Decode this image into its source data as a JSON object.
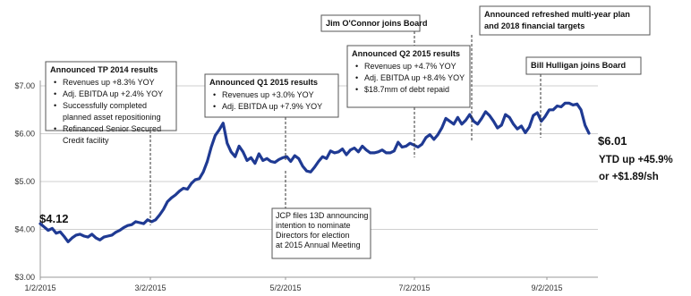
{
  "chart_data": {
    "type": "line",
    "title": "",
    "xlabel": "",
    "ylabel": "",
    "ylim": [
      3.0,
      7.0
    ],
    "yticks": [
      "$3.00",
      "$4.00",
      "$5.00",
      "$6.00",
      "$7.00"
    ],
    "xticks": [
      "1/2/2015",
      "3/2/2015",
      "5/2/2015",
      "7/2/2015",
      "9/2/2015"
    ],
    "grid": true,
    "series": [
      {
        "values": [
          4.12,
          4.05,
          3.98,
          4.02,
          3.92,
          3.95,
          3.85,
          3.74,
          3.82,
          3.88,
          3.9,
          3.86,
          3.84,
          3.9,
          3.82,
          3.78,
          3.84,
          3.86,
          3.88,
          3.94,
          3.98,
          4.04,
          4.08,
          4.1,
          4.16,
          4.14,
          4.12,
          4.2,
          4.16,
          4.2,
          4.3,
          4.42,
          4.58,
          4.66,
          4.72,
          4.8,
          4.86,
          4.84,
          4.96,
          5.04,
          5.06,
          5.2,
          5.42,
          5.72,
          5.96,
          6.08,
          6.22,
          5.8,
          5.62,
          5.52,
          5.74,
          5.62,
          5.44,
          5.5,
          5.38,
          5.58,
          5.44,
          5.48,
          5.42,
          5.4,
          5.46,
          5.5,
          5.52,
          5.42,
          5.54,
          5.48,
          5.32,
          5.22,
          5.2,
          5.3,
          5.42,
          5.52,
          5.48,
          5.64,
          5.6,
          5.62,
          5.68,
          5.56,
          5.66,
          5.7,
          5.62,
          5.74,
          5.66,
          5.6,
          5.6,
          5.62,
          5.66,
          5.6,
          5.6,
          5.64,
          5.82,
          5.72,
          5.74,
          5.8,
          5.76,
          5.72,
          5.78,
          5.92,
          5.98,
          5.88,
          5.98,
          6.12,
          6.32,
          6.26,
          6.2,
          6.34,
          6.2,
          6.28,
          6.4,
          6.26,
          6.2,
          6.32,
          6.46,
          6.38,
          6.26,
          6.12,
          6.18,
          6.4,
          6.34,
          6.2,
          6.1,
          6.16,
          6.02,
          6.14,
          6.38,
          6.44,
          6.26,
          6.36,
          6.5,
          6.5,
          6.58,
          6.56,
          6.64,
          6.64,
          6.6,
          6.62,
          6.5,
          6.18,
          6.01
        ]
      }
    ],
    "start_label": "$4.12",
    "end_label": "$6.01",
    "end_note_1": "YTD up +45.9%",
    "end_note_2": "or +$1.89/sh",
    "annotations": [
      {
        "title": "Announced TP 2014 results",
        "items": [
          "Revenues up +8.3% YOY",
          "Adj. EBITDA up +2.4% YOY",
          "Successfully completed planned asset repositioning",
          "Refinanced Senior Secured Credit facility"
        ],
        "date": "3/2/2015"
      },
      {
        "title": "Announced Q1 2015 results",
        "items": [
          "Revenues up +3.0% YOY",
          "Adj. EBITDA up +7.9% YOY"
        ],
        "date": "5/2/2015"
      },
      {
        "title": "",
        "items": [
          "JCP files 13D announcing intention to nominate Directors for election at 2015 Annual Meeting"
        ],
        "date": "5/2/2015"
      },
      {
        "title": "Jim O'Connor joins Board",
        "items": [],
        "date": "7/2/2015"
      },
      {
        "title": "Announced Q2 2015 results",
        "items": [
          "Revenues up +4.7% YOY",
          "Adj. EBITDA up +8.4% YOY",
          "$18.7mm of debt repaid"
        ],
        "date": "7/2/2015"
      },
      {
        "title": "Announced refreshed multi-year plan and 2018 financial targets",
        "items": [],
        "date": "7/2/2015"
      },
      {
        "title": "Bill Hulligan joins Board",
        "items": [],
        "date": "9/2/2015"
      }
    ]
  }
}
